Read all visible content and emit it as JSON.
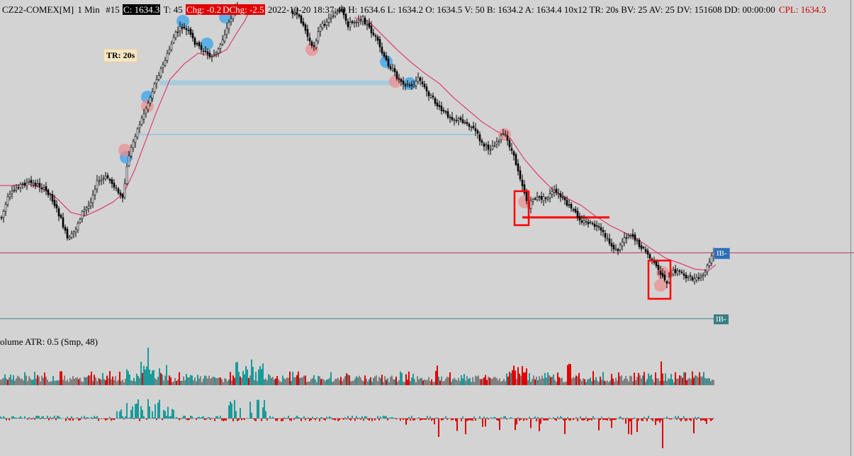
{
  "header": {
    "symbol": "CZ22-COMEX[M]",
    "interval": "1 Min",
    "bar_no": "#15",
    "close": "C: 1634.3",
    "ticks": "T: 45",
    "chg": "Chg: -0.2",
    "dchg": "DChg: -2.5",
    "stats": "2022-10-20 18:37:40 H: 1634.6 L: 1634.2 O: 1634.5 V: 50 B: 1634.2 A: 1634.4 10x12 TR: 20s BV: 25 AV: 25 DV: 151608 DD: 00:00:00",
    "cpl": "CPL: 1634.3"
  },
  "badge_tr": "TR: 20s",
  "volume_label": "olume  ATR: 0.5   (Smp, 48)",
  "ib_label_1": "IB-",
  "ib_label_2": "IB-",
  "colors": {
    "background": "#d3d3d3",
    "candle": "#000000",
    "ma_line": "#e0205a",
    "box_red": "#ff0000",
    "vol_up": "#1a9a9a",
    "vol_down": "#e00000",
    "vol_neutral": "#808080",
    "level_blue": "#a8ccdc"
  },
  "chart_data": {
    "type": "candlestick",
    "price_path": [
      [
        0,
        310
      ],
      [
        10,
        280
      ],
      [
        25,
        262
      ],
      [
        40,
        258
      ],
      [
        55,
        262
      ],
      [
        70,
        275
      ],
      [
        85,
        310
      ],
      [
        95,
        340
      ],
      [
        105,
        325
      ],
      [
        115,
        300
      ],
      [
        125,
        290
      ],
      [
        135,
        258
      ],
      [
        150,
        250
      ],
      [
        160,
        262
      ],
      [
        172,
        282
      ],
      [
        180,
        222
      ],
      [
        190,
        190
      ],
      [
        200,
        165
      ],
      [
        210,
        140
      ],
      [
        220,
        110
      ],
      [
        230,
        90
      ],
      [
        238,
        70
      ],
      [
        245,
        50
      ],
      [
        255,
        38
      ],
      [
        265,
        45
      ],
      [
        275,
        62
      ],
      [
        285,
        70
      ],
      [
        295,
        80
      ],
      [
        305,
        75
      ],
      [
        315,
        50
      ],
      [
        325,
        25
      ],
      [
        335,
        5
      ],
      [
        410,
        15
      ],
      [
        425,
        30
      ],
      [
        440,
        70
      ],
      [
        450,
        40
      ],
      [
        460,
        30
      ],
      [
        470,
        20
      ],
      [
        480,
        15
      ],
      [
        490,
        35
      ],
      [
        500,
        30
      ],
      [
        510,
        25
      ],
      [
        520,
        40
      ],
      [
        530,
        55
      ],
      [
        540,
        80
      ],
      [
        550,
        95
      ],
      [
        560,
        110
      ],
      [
        570,
        118
      ],
      [
        580,
        122
      ],
      [
        590,
        110
      ],
      [
        600,
        128
      ],
      [
        610,
        140
      ],
      [
        620,
        155
      ],
      [
        630,
        162
      ],
      [
        640,
        168
      ],
      [
        650,
        170
      ],
      [
        660,
        175
      ],
      [
        670,
        185
      ],
      [
        680,
        205
      ],
      [
        690,
        210
      ],
      [
        700,
        200
      ],
      [
        710,
        188
      ],
      [
        720,
        210
      ],
      [
        730,
        240
      ],
      [
        740,
        275
      ],
      [
        745,
        295
      ],
      [
        750,
        280
      ],
      [
        760,
        280
      ],
      [
        770,
        280
      ],
      [
        780,
        270
      ],
      [
        790,
        278
      ],
      [
        800,
        290
      ],
      [
        810,
        300
      ],
      [
        820,
        312
      ],
      [
        830,
        315
      ],
      [
        840,
        320
      ],
      [
        850,
        330
      ],
      [
        860,
        345
      ],
      [
        870,
        355
      ],
      [
        880,
        335
      ],
      [
        890,
        330
      ],
      [
        900,
        345
      ],
      [
        910,
        355
      ],
      [
        920,
        370
      ],
      [
        930,
        385
      ],
      [
        940,
        398
      ],
      [
        950,
        382
      ],
      [
        960,
        385
      ],
      [
        970,
        392
      ],
      [
        980,
        395
      ],
      [
        990,
        392
      ],
      [
        1000,
        370
      ],
      [
        1007,
        355
      ]
    ],
    "ma_path": [
      [
        0,
        262
      ],
      [
        20,
        262
      ],
      [
        40,
        260
      ],
      [
        60,
        266
      ],
      [
        80,
        280
      ],
      [
        100,
        300
      ],
      [
        120,
        305
      ],
      [
        140,
        296
      ],
      [
        160,
        285
      ],
      [
        175,
        272
      ],
      [
        190,
        240
      ],
      [
        205,
        200
      ],
      [
        220,
        160
      ],
      [
        240,
        112
      ],
      [
        260,
        90
      ],
      [
        280,
        75
      ],
      [
        300,
        80
      ],
      [
        320,
        70
      ],
      [
        335,
        45
      ],
      [
        345,
        30
      ],
      [
        355,
        10
      ],
      [
        500,
        25
      ],
      [
        520,
        30
      ],
      [
        540,
        50
      ],
      [
        560,
        70
      ],
      [
        580,
        88
      ],
      [
        600,
        104
      ],
      [
        620,
        118
      ],
      [
        640,
        138
      ],
      [
        660,
        155
      ],
      [
        680,
        172
      ],
      [
        700,
        185
      ],
      [
        720,
        195
      ],
      [
        740,
        225
      ],
      [
        760,
        248
      ],
      [
        780,
        268
      ],
      [
        800,
        280
      ],
      [
        820,
        290
      ],
      [
        840,
        305
      ],
      [
        860,
        318
      ],
      [
        880,
        328
      ],
      [
        900,
        338
      ],
      [
        920,
        352
      ],
      [
        940,
        365
      ],
      [
        960,
        372
      ],
      [
        980,
        380
      ],
      [
        1000,
        382
      ],
      [
        1010,
        374
      ]
    ],
    "levels": [
      {
        "y_price_px": 117,
        "x0": 225,
        "x1": 560,
        "kind": "thick-blue"
      },
      {
        "y_price_px": 190,
        "x0": 195,
        "x1": 670,
        "kind": "thin-blue"
      },
      {
        "y_price_px": 307,
        "x0": 737,
        "x1": 860,
        "kind": "red"
      },
      {
        "y_price_px": 357,
        "x0": 0,
        "x1": 1205,
        "kind": "thin-red"
      },
      {
        "y_price_px": 450,
        "x0": 0,
        "x1": 1010,
        "kind": "thin-teal"
      }
    ],
    "boxes": [
      {
        "x0": 726,
        "x1": 746,
        "y0": 270,
        "y1": 318
      },
      {
        "x0": 915,
        "x1": 946,
        "y0": 368,
        "y1": 422
      }
    ],
    "markers_blue": [
      [
        178,
        222
      ],
      [
        208,
        137
      ],
      [
        258,
        30
      ],
      [
        292,
        62
      ],
      [
        318,
        24
      ],
      [
        545,
        87
      ],
      [
        578,
        118
      ]
    ],
    "markers_red": [
      [
        176,
        212
      ],
      [
        208,
        150
      ],
      [
        440,
        70
      ],
      [
        558,
        115
      ],
      [
        712,
        190
      ],
      [
        740,
        285
      ],
      [
        932,
        403
      ],
      [
        935,
        385
      ]
    ],
    "seed": 7
  }
}
